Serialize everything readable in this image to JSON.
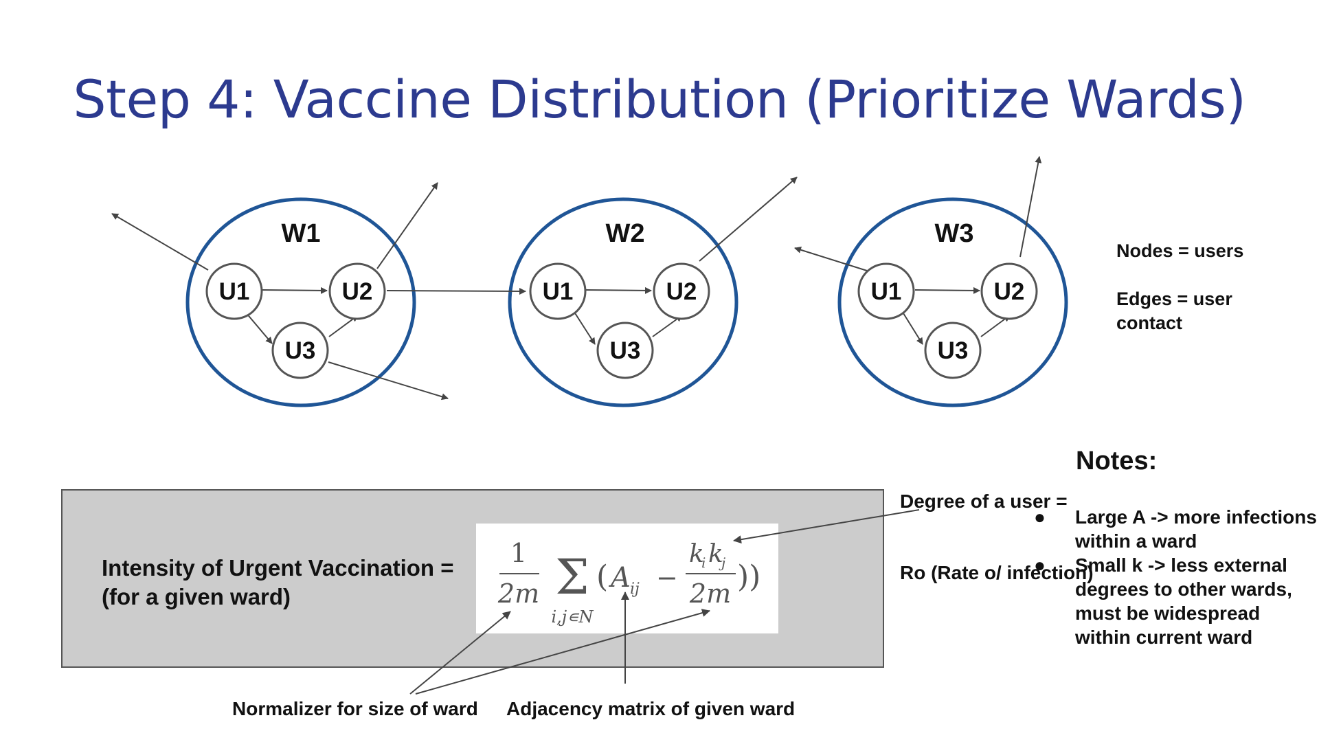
{
  "title": "Step 4:  Vaccine Distribution (Prioritize Wards)",
  "wards": [
    {
      "label": "W1",
      "nodes": [
        "U1",
        "U2",
        "U3"
      ]
    },
    {
      "label": "W2",
      "nodes": [
        "U1",
        "U2",
        "U3"
      ]
    },
    {
      "label": "W3",
      "nodes": [
        "U1",
        "U2",
        "U3"
      ]
    }
  ],
  "legend": {
    "nodes": "Nodes = users",
    "edges": "Edges = user contact"
  },
  "formula": {
    "label_line1": "Intensity of Urgent Vaccination =",
    "label_line2": "(for a given ward)",
    "equation": "1/2m Σ_{i,j∈N} (A_ij − k_i k_j / 2m))"
  },
  "annotations": {
    "degree": "Degree of a user  =",
    "ro": "Ro (Rate o/ infection)",
    "normalizer": "Normalizer for size of ward",
    "adjacency": "Adjacency matrix of given ward"
  },
  "notes": {
    "title": "Notes:",
    "items": [
      "Large A -> more infections within a ward",
      "Small k -> less external degrees to other wards, must be widespread within current ward"
    ]
  },
  "colors": {
    "title": "#2c3a8f",
    "ward_circle": "#1f5596",
    "formula_box": "#cccccc"
  }
}
